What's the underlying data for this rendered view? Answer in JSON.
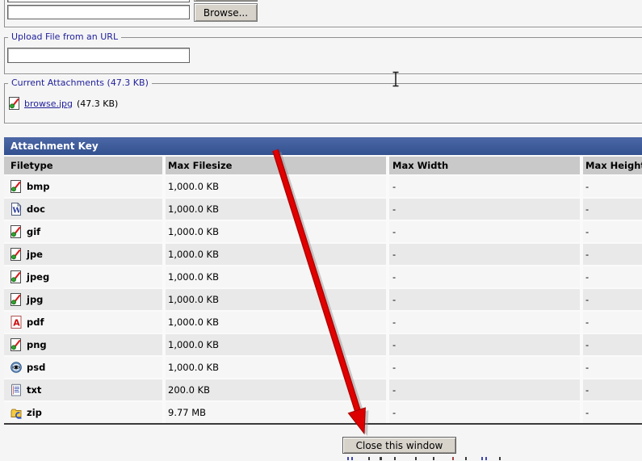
{
  "upload_computer": {
    "browse_label": "Browse...",
    "file_input_value": "",
    "file_input_partial_value": ""
  },
  "upload_url": {
    "legend": "Upload File from an URL",
    "url_input_value": ""
  },
  "current_attachments": {
    "legend": "Current Attachments (47.3 KB)",
    "file": {
      "icon": "image-file-icon",
      "name": "browse.jpg",
      "size": "(47.3 KB)"
    }
  },
  "attachment_key": {
    "title": "Attachment Key",
    "columns": [
      "Filetype",
      "Max Filesize",
      "Max Width",
      "Max Height"
    ],
    "rows": [
      {
        "icon": "image-file-icon",
        "filetype": "bmp",
        "max_filesize": "1,000.0 KB",
        "max_width": "-",
        "max_height": "-"
      },
      {
        "icon": "doc-file-icon",
        "filetype": "doc",
        "max_filesize": "1,000.0 KB",
        "max_width": "-",
        "max_height": "-"
      },
      {
        "icon": "image-file-icon",
        "filetype": "gif",
        "max_filesize": "1,000.0 KB",
        "max_width": "-",
        "max_height": "-"
      },
      {
        "icon": "image-file-icon",
        "filetype": "jpe",
        "max_filesize": "1,000.0 KB",
        "max_width": "-",
        "max_height": "-"
      },
      {
        "icon": "image-file-icon",
        "filetype": "jpeg",
        "max_filesize": "1,000.0 KB",
        "max_width": "-",
        "max_height": "-"
      },
      {
        "icon": "image-file-icon",
        "filetype": "jpg",
        "max_filesize": "1,000.0 KB",
        "max_width": "-",
        "max_height": "-"
      },
      {
        "icon": "pdf-file-icon",
        "filetype": "pdf",
        "max_filesize": "1,000.0 KB",
        "max_width": "-",
        "max_height": "-"
      },
      {
        "icon": "image-file-icon",
        "filetype": "png",
        "max_filesize": "1,000.0 KB",
        "max_width": "-",
        "max_height": "-"
      },
      {
        "icon": "psd-file-icon",
        "filetype": "psd",
        "max_filesize": "1,000.0 KB",
        "max_width": "-",
        "max_height": "-"
      },
      {
        "icon": "txt-file-icon",
        "filetype": "txt",
        "max_filesize": "200.0 KB",
        "max_width": "-",
        "max_height": "-"
      },
      {
        "icon": "zip-file-icon",
        "filetype": "zip",
        "max_filesize": "9.77 MB",
        "max_width": "-",
        "max_height": "-"
      }
    ]
  },
  "footer": {
    "close_label": "Close this window"
  },
  "colors": {
    "header_bar_top": "#4D68A6",
    "header_bar_bottom": "#32508F",
    "column_header_bg": "#C9C9C9",
    "row_light": "#F6F6F6",
    "row_dark": "#E9E9E9",
    "legend_text": "#22229C",
    "link_text": "#22229C",
    "annotation_arrow": "#DD0000"
  }
}
